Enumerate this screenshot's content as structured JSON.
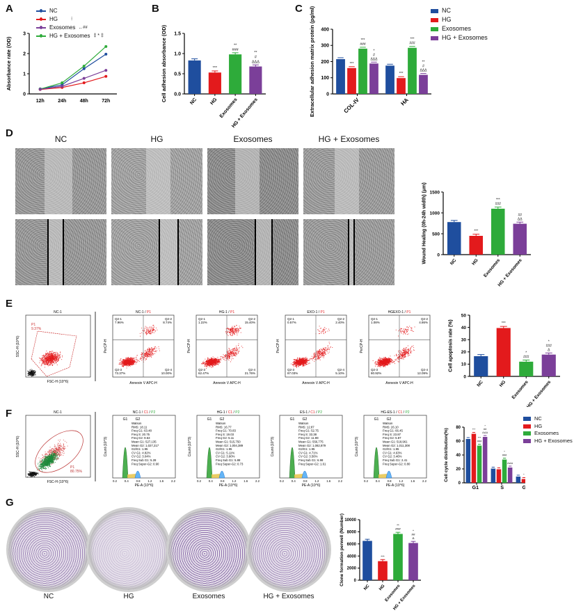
{
  "colors": {
    "NC": "#1f4e9e",
    "HG": "#e31a1c",
    "Exosomes": "#2eab3a",
    "HG + Exosomes": "#7b3f99"
  },
  "panel_labels": [
    "A",
    "B",
    "C",
    "D",
    "E",
    "F",
    "G"
  ],
  "groups": [
    "NC",
    "HG",
    "Exosomes",
    "HG + Exosomes"
  ],
  "chart_data": [
    {
      "id": "A",
      "type": "line",
      "x": [
        "12h",
        "24h",
        "48h",
        "72h"
      ],
      "ylabel": "Absorbance rate (OD)",
      "ylim": [
        0,
        3
      ],
      "yticks": [
        "0",
        "1",
        "2",
        "3"
      ],
      "legend": "top-left",
      "series": [
        {
          "name": "NC",
          "values": [
            0.25,
            0.45,
            1.25,
            1.97
          ]
        },
        {
          "name": "HG",
          "values": [
            0.22,
            0.32,
            0.55,
            0.87
          ]
        },
        {
          "name": "Exosomes",
          "values": [
            0.24,
            0.55,
            1.38,
            2.35
          ]
        },
        {
          "name": "HG + Exosomes",
          "values": [
            0.23,
            0.38,
            0.77,
            1.17
          ]
        }
      ]
    },
    {
      "id": "B",
      "type": "bar",
      "categories": [
        "NC",
        "HG",
        "Exosomes",
        "HG + Exosomes"
      ],
      "values": [
        0.83,
        0.53,
        0.98,
        0.68
      ],
      "ylabel": "Cell adhesion absorbance (OD)",
      "ylim": [
        0,
        1.5
      ],
      "yticks": [
        "0.0",
        "0.5",
        "1.0",
        "1.5"
      ],
      "annotations": [
        [],
        [
          "***"
        ],
        [
          "**",
          "###"
        ],
        [
          "**",
          "#",
          "ΔΔΔ"
        ]
      ]
    },
    {
      "id": "C",
      "type": "bar",
      "categories": [
        "COL-IV",
        "HA"
      ],
      "series": [
        {
          "name": "NC",
          "values": [
            215,
            175
          ]
        },
        {
          "name": "HG",
          "values": [
            160,
            98
          ]
        },
        {
          "name": "Exosomes",
          "values": [
            280,
            285
          ]
        },
        {
          "name": "HG + Exosomes",
          "values": [
            188,
            118
          ]
        }
      ],
      "ylabel": "Extracellular adhesion matrix protein (pg/ml)",
      "ylim": [
        0,
        400
      ],
      "yticks": [
        "0",
        "100",
        "200",
        "300",
        "400"
      ],
      "legend": "top-right",
      "annotations": [
        [
          [],
          [
            "***"
          ],
          [
            "***",
            "###"
          ],
          [
            "*",
            "#",
            "ΔΔΔ"
          ]
        ],
        [
          [],
          [
            "***"
          ],
          [
            "***",
            "###"
          ],
          [
            "**",
            "#",
            "ΔΔΔ"
          ]
        ]
      ]
    },
    {
      "id": "D",
      "type": "bar",
      "categories": [
        "NC",
        "HG",
        "Exosomes",
        "HG + Exosomes"
      ],
      "values": [
        780,
        450,
        1100,
        740
      ],
      "ylabel": "Wound Healing (0h-24h width) (μm)",
      "ylim": [
        0,
        1500
      ],
      "yticks": [
        "0",
        "500",
        "1000",
        "1500"
      ],
      "annotations": [
        [],
        [
          "***"
        ],
        [
          "***",
          "###"
        ],
        [
          "##",
          "ΔΔ"
        ]
      ]
    },
    {
      "id": "E",
      "type": "bar",
      "categories": [
        "NC",
        "HG",
        "Exosomes",
        "HG + Exosomes"
      ],
      "values": [
        16.5,
        39.5,
        12,
        17.8
      ],
      "ylabel": "Cell apoptosis rate (%)",
      "ylim": [
        0,
        50
      ],
      "yticks": [
        "0",
        "10",
        "20",
        "30",
        "40",
        "50"
      ],
      "annotations": [
        [],
        [
          "***"
        ],
        [
          "*",
          "###"
        ],
        [
          "*",
          "###",
          "Δ"
        ]
      ]
    },
    {
      "id": "F",
      "type": "bar",
      "categories": [
        "G1",
        "S",
        "G2"
      ],
      "series": [
        {
          "name": "NC",
          "values": [
            63,
            20.5,
            9
          ]
        },
        {
          "name": "HG",
          "values": [
            70.5,
            19.5,
            5.5
          ]
        },
        {
          "name": "Exosomes",
          "values": [
            53.5,
            33.5,
            12
          ]
        },
        {
          "name": "HG + Exosomes",
          "values": [
            66,
            22,
            5
          ]
        }
      ],
      "ylabel": "Cell cycle distribution(%)",
      "ylim": [
        0,
        80
      ],
      "yticks": [
        "0",
        "20",
        "40",
        "60",
        "80"
      ],
      "legend": "top-right",
      "annotations": [
        [
          [],
          [
            "***"
          ],
          [
            "***",
            "###"
          ],
          [
            "*",
            "##",
            "ΔΔΔ"
          ]
        ],
        [
          [],
          [],
          [
            "*",
            "###"
          ],
          [
            "ΔΔΔ"
          ]
        ],
        [
          [],
          [
            "*"
          ],
          [
            "*",
            "##"
          ],
          [
            "*",
            "ΔΔ"
          ]
        ]
      ]
    },
    {
      "id": "G",
      "type": "bar",
      "categories": [
        "NC",
        "HG",
        "Exosomes",
        "HG + Exosomes"
      ],
      "values": [
        6500,
        3150,
        7650,
        6150
      ],
      "ylabel": "Clone formation perwell (Number)",
      "ylim": [
        0,
        10000
      ],
      "yticks": [
        "0",
        "2000",
        "4000",
        "6000",
        "8000",
        "10000"
      ],
      "annotations": [
        [],
        [
          "***"
        ],
        [
          "**",
          "###"
        ],
        [
          "*",
          "##",
          "Δ"
        ]
      ]
    }
  ],
  "panelA_legend_marks": [
    "⁝",
    "‥ ##",
    "‡ * ‡"
  ],
  "panelD": {
    "column_headers": [
      "NC",
      "HG",
      "Exosomes",
      "HG + Exosomes"
    ]
  },
  "panelE": {
    "gate_plot": {
      "title": "NC-1",
      "gate": "P1",
      "gate_pct": "9.37%",
      "xlabel": "FSC-H (10^6)",
      "ylabel": "SSC-H (10^6)"
    },
    "xaxis": "Annexin V APC-H",
    "yaxis": "PerCP-H",
    "quadrant_plots": [
      {
        "title": "NC-1",
        "sub": "P1",
        "q1": "Q2-1",
        "v1": "7.96%",
        "q2": "Q2-2",
        "v2": "8.74%",
        "q3": "Q2-3",
        "v3": "73.37%",
        "q4": "Q2-4",
        "v4": "10.00%"
      },
      {
        "title": "HG-1",
        "sub": "P1",
        "q1": "Q2-1",
        "v1": "1.22%",
        "q2": "Q2-2",
        "v2": "15.40%",
        "q3": "Q2-3",
        "v3": "62.47%",
        "q4": "Q2-4",
        "v4": "21.76%"
      },
      {
        "title": "EXO-1",
        "sub": "P1",
        "q1": "Q2-1",
        "v1": "0.57%",
        "q2": "Q2-2",
        "v2": "2.40%",
        "q3": "Q2-3",
        "v3": "87.03%",
        "q4": "Q2-4",
        "v4": "5.10%"
      },
      {
        "title": "HGEXO-1",
        "sub": "P1",
        "q1": "Q2-1",
        "v1": "1.08%",
        "q2": "Q2-2",
        "v2": "4.86%",
        "q3": "Q2-3",
        "v3": "80.92%",
        "q4": "Q2-4",
        "v4": "12.09%"
      }
    ]
  },
  "panelF": {
    "gate_plot": {
      "title": "NC-1",
      "gate": "P1",
      "gate_pct": "80.75%",
      "xlabel": "FSC-H (10^6)",
      "ylabel": "SSC-H (10^6)"
    },
    "xaxis": "PE-A (10^6)",
    "yaxis": "Count (10^3)",
    "peaks": [
      "G1",
      "G2"
    ],
    "histograms": [
      {
        "title": "NC-1",
        "lines": [
          "Watson",
          "RMS: 18.11",
          "Freq G1: 63.48",
          "Freq S: 20.75",
          "Freq G2: 9.63",
          "Mean G1: 527,135",
          "Mean G2: 1,027,217",
          "G2/G1: 1.95",
          "CV G1: 4.82%",
          "CV G2: 3.04%",
          "Freq Sub G1: 5.28",
          "Freq Super-G2: 0.90"
        ]
      },
      {
        "title": "HG-1",
        "lines": [
          "Watson",
          "RMS: 16.77",
          "Freq G1: 70.83",
          "Freq S: 19.03",
          "Freq G2: 5.11",
          "Mean G1: 515,750",
          "Mean G2: 1,004,389",
          "G2/G1: 1.95",
          "CV G1: 5.11%",
          "CV G2: 3.90%",
          "Freq Sub G1: 5.88",
          "Freq Super-G2: 0.73"
        ]
      },
      {
        "title": "ES-1",
        "lines": [
          "Watson",
          "RMS: 12.87",
          "Freq G1: 52.75",
          "Freq S: 33.38",
          "Freq G2: 11.98",
          "Mean G1: 556,775",
          "Mean G2: 1,082,879",
          "G2/G1: 1.95",
          "CV G1: 4.71%",
          "CV G2: 3.56%",
          "Freq Sub G1: 6.98",
          "Freq Super-G2: 1.61"
        ]
      },
      {
        "title": "HG-ES-1",
        "lines": [
          "Watson",
          "RMS: 26.10",
          "Freq G1: 66.45",
          "Freq S: 23.87",
          "Freq G2: 5.87",
          "Mean G1: 518,961",
          "Mean G2: 1,011,308",
          "G2/G1: 1.95",
          "CV G1: 4.63%",
          "CV G2: 3.46%",
          "Freq Sub G1: 2.41",
          "Freq Super-G2: 0.80"
        ]
      }
    ],
    "gate_labels": [
      "C1",
      "P2"
    ],
    "xticks": [
      "0.2",
      "0.4",
      "0.8",
      "1.2",
      "1.6",
      "2.2"
    ]
  },
  "panelG": {
    "dish_labels": [
      "NC",
      "HG",
      "Exosomes",
      "HG + Exosomes"
    ]
  }
}
